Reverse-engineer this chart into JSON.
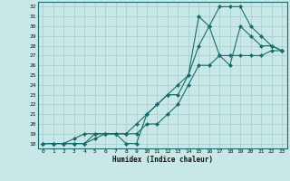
{
  "xlabel": "Humidex (Indice chaleur)",
  "bg_color": "#c8e8e8",
  "grid_color": "#aad0d0",
  "line_color": "#1a6b6b",
  "xlim": [
    -0.5,
    23.5
  ],
  "ylim": [
    17.5,
    32.5
  ],
  "xticks": [
    0,
    1,
    2,
    3,
    4,
    5,
    6,
    7,
    8,
    9,
    10,
    11,
    12,
    13,
    14,
    15,
    16,
    17,
    18,
    19,
    20,
    21,
    22,
    23
  ],
  "yticks": [
    18,
    19,
    20,
    21,
    22,
    23,
    24,
    25,
    26,
    27,
    28,
    29,
    30,
    31,
    32
  ],
  "series": [
    {
      "x": [
        0,
        1,
        2,
        3,
        4,
        5,
        6,
        7,
        8,
        9,
        10,
        11,
        12,
        13,
        14,
        15,
        16,
        17,
        18,
        19,
        20,
        21,
        22,
        23
      ],
      "y": [
        18,
        18,
        18,
        18,
        18,
        19,
        19,
        19,
        18,
        18,
        21,
        22,
        23,
        23,
        25,
        31,
        30,
        27,
        26,
        30,
        29,
        28,
        28,
        27.5
      ]
    },
    {
      "x": [
        0,
        1,
        2,
        3,
        4,
        5,
        6,
        7,
        8,
        9,
        10,
        11,
        12,
        13,
        14,
        15,
        16,
        17,
        18,
        19,
        20,
        21,
        22,
        23
      ],
      "y": [
        18,
        18,
        18,
        18.5,
        19,
        19,
        19,
        19,
        19,
        20,
        21,
        22,
        23,
        24,
        25,
        28,
        30,
        32,
        32,
        32,
        30,
        29,
        28,
        27.5
      ]
    },
    {
      "x": [
        0,
        1,
        2,
        3,
        4,
        5,
        6,
        7,
        8,
        9,
        10,
        11,
        12,
        13,
        14,
        15,
        16,
        17,
        18,
        19,
        20,
        21,
        22,
        23
      ],
      "y": [
        18,
        18,
        18,
        18,
        18,
        18.5,
        19,
        19,
        19,
        19,
        20,
        20,
        21,
        22,
        24,
        26,
        26,
        27,
        27,
        27,
        27,
        27,
        27.5,
        27.5
      ]
    }
  ]
}
